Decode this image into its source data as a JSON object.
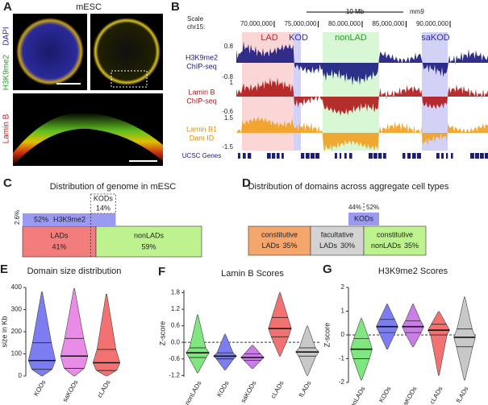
{
  "panel_a": {
    "label": "A",
    "title": "mESC",
    "channels": [
      "DAPI",
      "H3K9me2",
      "Lamin B"
    ]
  },
  "panel_b": {
    "label": "B",
    "scale_bar": "10 Mb",
    "genome": "mm9",
    "scale_label": "Scale",
    "chrom": "chr15:",
    "positions": [
      "70,000,000",
      "75,000,000",
      "80,000,000",
      "85,000,000",
      "90,000,000"
    ],
    "regions": [
      "LAD",
      "KOD",
      "nonLAD",
      "saKOD"
    ],
    "tracks": [
      {
        "name": "H3K9me2",
        "method": "ChIP-seq",
        "max": "0.8",
        "min": "-0.8"
      },
      {
        "name": "Lamin B",
        "method": "ChIP-seq",
        "max": "1",
        "min": "-0.6"
      },
      {
        "name": "Lamin B1",
        "method": "Dam ID",
        "max": "1.5",
        "min": "-1.5"
      }
    ],
    "genes_label": "UCSC Genes"
  },
  "panel_c": {
    "label": "C",
    "title": "Distribution of genome in mESC",
    "kod_label": "KODs",
    "kod_value": 14,
    "kod_value_label": "14%",
    "h3_value": 52,
    "h3_value_label": "52%",
    "h3_label": "H3K9me2",
    "left_note": "2.6%",
    "segments": [
      {
        "name": "LADs",
        "value": 41,
        "value_label": "41%",
        "color": "#f27d7d"
      },
      {
        "name": "nonLADs",
        "value": 59,
        "value_label": "59%",
        "color": "#bdf28f"
      }
    ]
  },
  "panel_d": {
    "label": "D",
    "title": "Distribution of domains across aggregate cell types",
    "kod_label": "KODs",
    "kod_left": "44%",
    "kod_right": "52%",
    "segments": [
      {
        "name": "constitutive",
        "sub": "LADs",
        "value": 35,
        "value_label": "35%",
        "color": "#f5a66d"
      },
      {
        "name": "facultative",
        "sub": "LADs",
        "value": 30,
        "value_label": "30%",
        "color": "#d3d3d3"
      },
      {
        "name": "constitutive",
        "sub": "nonLADs",
        "value": 35,
        "value_label": "35%",
        "color": "#bdf28f"
      }
    ]
  },
  "chart_data": [
    {
      "type": "violin",
      "label": "E",
      "title": "Domain size distribution",
      "ylabel": "size in Kb",
      "categories": [
        "KODs",
        "saKODs",
        "cLADs"
      ],
      "colors": [
        "#7d7df2",
        "#e88ce8",
        "#f27272"
      ],
      "min": [
        0,
        0,
        0
      ],
      "q1": [
        30,
        35,
        25
      ],
      "median": [
        70,
        90,
        60
      ],
      "q3": [
        150,
        170,
        120
      ],
      "max": [
        380,
        395,
        370
      ],
      "ylim": [
        0,
        400
      ],
      "yticks": [
        0,
        100,
        200,
        300,
        400
      ],
      "zero_line": false
    },
    {
      "type": "violin",
      "label": "F",
      "title": "Lamin B Scores",
      "ylabel": "Z-score",
      "categories": [
        "nonLADs",
        "KODs",
        "saKODs",
        "cLADs",
        "fLADs"
      ],
      "colors": [
        "#80e680",
        "#7d7df2",
        "#c97de6",
        "#f27272",
        "#c8c8c8"
      ],
      "min": [
        -1.1,
        -1.0,
        -0.95,
        -0.5,
        -1.2
      ],
      "q1": [
        -0.55,
        -0.6,
        -0.65,
        0.2,
        -0.5
      ],
      "median": [
        -0.38,
        -0.5,
        -0.55,
        0.5,
        -0.35
      ],
      "q3": [
        -0.2,
        -0.38,
        -0.42,
        0.9,
        -0.2
      ],
      "max": [
        1.0,
        0.3,
        -0.1,
        1.8,
        0.6
      ],
      "ylim": [
        -1.25,
        1.9
      ],
      "yticks": [
        -1.2,
        -0.6,
        {
          "value": 0,
          "label": "0.0"
        },
        0.6,
        1.2,
        1.8
      ],
      "zero_line": true
    },
    {
      "type": "violin",
      "label": "G",
      "title": "H3K9me2 Scores",
      "ylabel": "Z-score",
      "categories": [
        "nonLADs",
        "KODs",
        "saKODs",
        "cLADs",
        "fLADs"
      ],
      "colors": [
        "#80e680",
        "#7d7df2",
        "#c97de6",
        "#f27272",
        "#c8c8c8"
      ],
      "min": [
        -1.9,
        -0.6,
        -0.5,
        -1.7,
        -1.9
      ],
      "q1": [
        -1.0,
        0.1,
        0.1,
        0.0,
        -0.5
      ],
      "median": [
        -0.6,
        0.35,
        0.35,
        0.2,
        -0.1
      ],
      "q3": [
        -0.15,
        0.65,
        0.6,
        0.45,
        0.25
      ],
      "max": [
        0.7,
        1.3,
        1.3,
        1.0,
        1.6
      ],
      "ylim": [
        -2,
        2
      ],
      "yticks": [
        -2,
        -1,
        0,
        1,
        2
      ],
      "zero_line": true
    }
  ]
}
